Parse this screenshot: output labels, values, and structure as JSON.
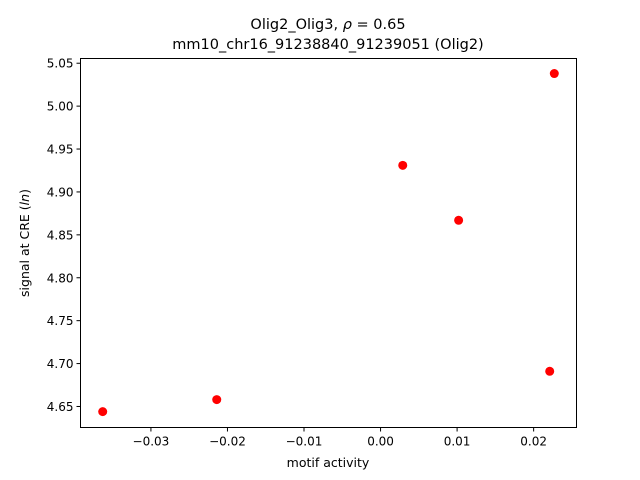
{
  "chart_data": {
    "type": "scatter",
    "title_line1_prefix": "Olig2_Olig3, ",
    "title_line1_symbol": "ρ",
    "title_line1_suffix": " = 0.65",
    "title_line2": "mm10_chr16_91238840_91239051 (Olig2)",
    "xlabel": "motif activity",
    "ylabel_prefix": "signal at CRE (",
    "ylabel_italic": "ln",
    "ylabel_suffix": ")",
    "xlim": [
      -0.0392,
      0.0256
    ],
    "ylim": [
      4.6255,
      5.0555
    ],
    "x_ticks": [
      -0.03,
      -0.02,
      -0.01,
      0.0,
      0.01,
      0.02
    ],
    "x_tick_labels": [
      "−0.03",
      "−0.02",
      "−0.01",
      "0.00",
      "0.01",
      "0.02"
    ],
    "y_ticks": [
      4.65,
      4.7,
      4.75,
      4.8,
      4.85,
      4.9,
      4.95,
      5.0,
      5.05
    ],
    "y_tick_labels": [
      "4.65",
      "4.70",
      "4.75",
      "4.80",
      "4.85",
      "4.90",
      "4.95",
      "5.00",
      "5.05"
    ],
    "grid": false,
    "marker_color": "#ff0000",
    "points": [
      {
        "x": -0.0363,
        "y": 4.644
      },
      {
        "x": -0.0214,
        "y": 4.658
      },
      {
        "x": 0.0029,
        "y": 4.931
      },
      {
        "x": 0.0102,
        "y": 4.867
      },
      {
        "x": 0.0221,
        "y": 4.691
      },
      {
        "x": 0.0227,
        "y": 5.038
      }
    ]
  }
}
